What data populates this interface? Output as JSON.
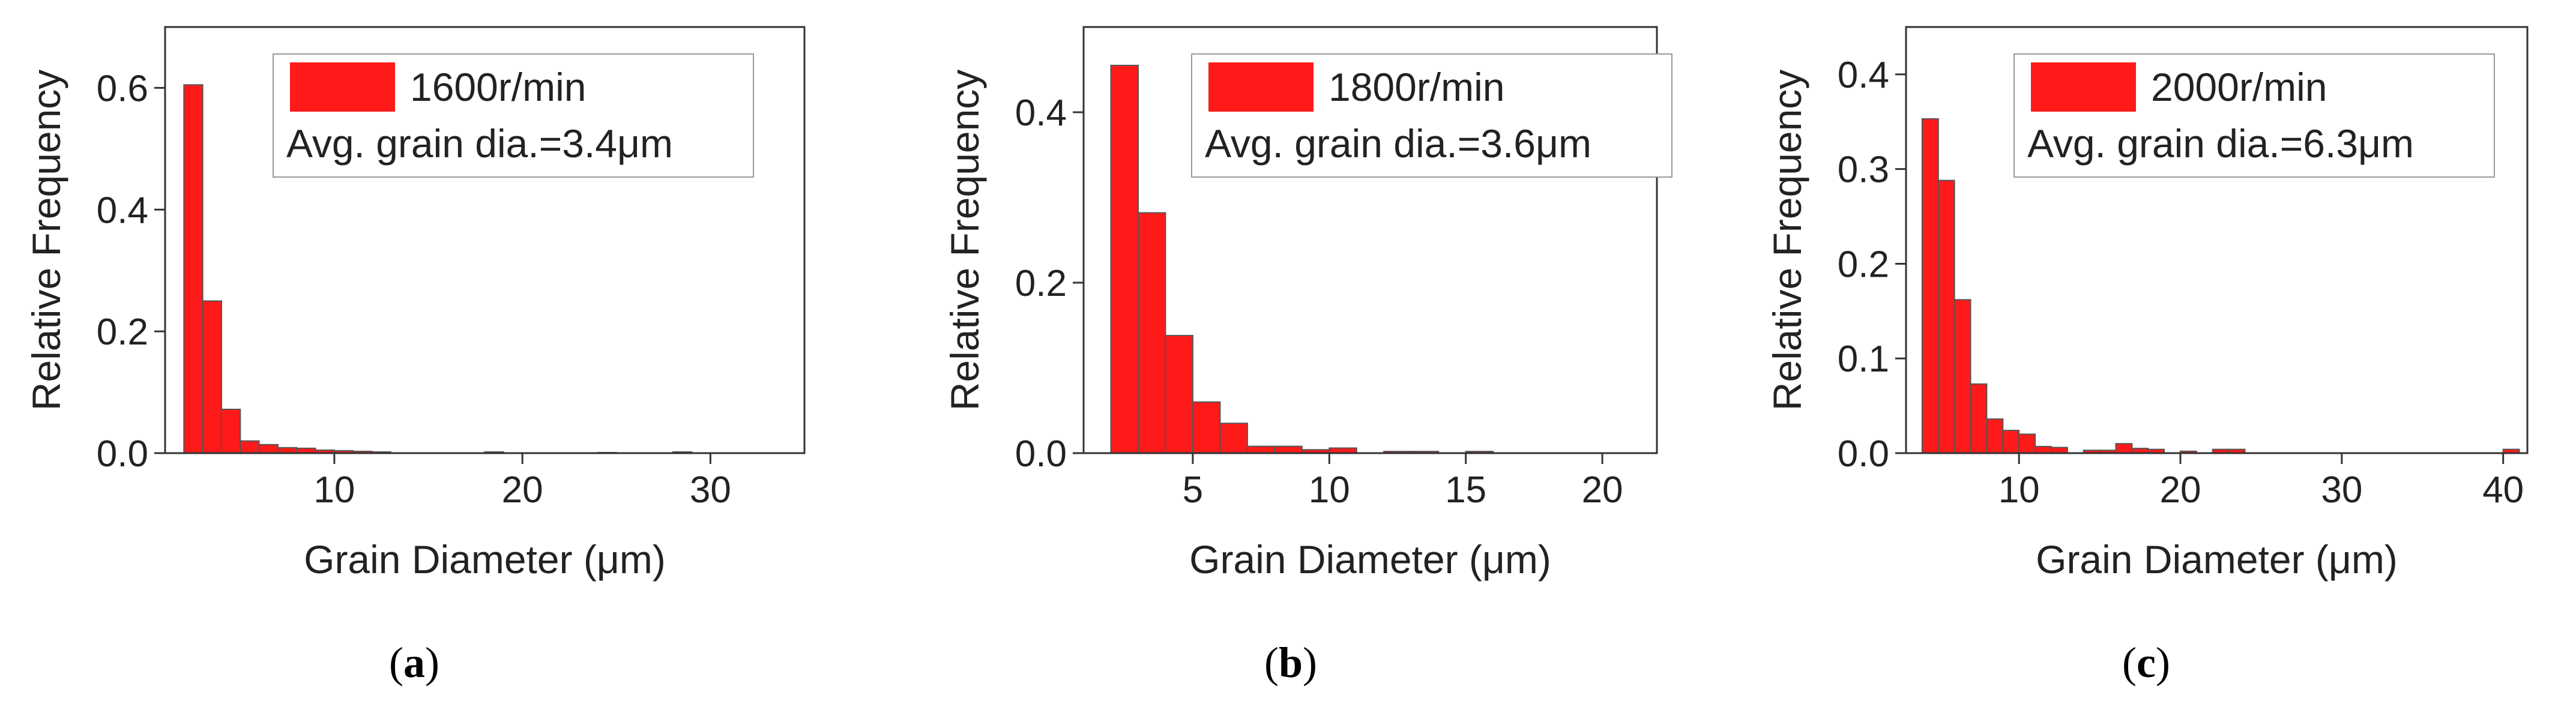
{
  "colors": {
    "bar": "#ff1a1a",
    "bar_edge": "#555555",
    "axis": "#333333",
    "legend_box_edge": "#999999"
  },
  "chart_data": [
    {
      "type": "bar",
      "panel_label": "a",
      "legend_series": "1600r/min",
      "legend_note": "Avg. grain dia.=3.4μm",
      "xlabel": "Grain Diameter (μm)",
      "ylabel": "Relative Frequency",
      "xlim": [
        1,
        35
      ],
      "ylim": [
        0,
        0.7
      ],
      "xticks": [
        10,
        20,
        30
      ],
      "yticks": [
        0.0,
        0.2,
        0.4,
        0.6
      ],
      "ytick_labels": [
        "0.0",
        "0.2",
        "0.4",
        "0.6"
      ],
      "bin_width": 1,
      "x": [
        2.5,
        3.5,
        4.5,
        5.5,
        6.5,
        7.5,
        8.5,
        9.5,
        10.5,
        11.5,
        12.5,
        18.5,
        24.5,
        28.5
      ],
      "values": [
        0.605,
        0.25,
        0.072,
        0.02,
        0.014,
        0.009,
        0.008,
        0.005,
        0.004,
        0.003,
        0.002,
        0.002,
        0.001,
        0.002
      ]
    },
    {
      "type": "bar",
      "panel_label": "b",
      "legend_series": "1800r/min",
      "legend_note": "Avg. grain dia.=3.6μm",
      "xlabel": "Grain Diameter (μm)",
      "ylabel": "Relative Frequency",
      "xlim": [
        1,
        22
      ],
      "ylim": [
        0,
        0.5
      ],
      "xticks": [
        5,
        10,
        15,
        20
      ],
      "yticks": [
        0.0,
        0.2,
        0.4
      ],
      "ytick_labels": [
        "0.0",
        "0.2",
        "0.4"
      ],
      "bin_width": 1,
      "x": [
        2.5,
        3.5,
        4.5,
        5.5,
        6.5,
        7.5,
        8.5,
        9.5,
        10.5,
        12.5,
        13.5,
        15.5
      ],
      "values": [
        0.455,
        0.282,
        0.138,
        0.06,
        0.035,
        0.008,
        0.008,
        0.004,
        0.006,
        0.002,
        0.002,
        0.002
      ]
    },
    {
      "type": "bar",
      "panel_label": "c",
      "legend_series": "2000r/min",
      "legend_note": "Avg. grain dia.=6.3μm",
      "xlabel": "Grain Diameter (μm)",
      "ylabel": "Relative Frequency",
      "xlim": [
        3,
        41.5
      ],
      "ylim": [
        0,
        0.45
      ],
      "xticks": [
        10,
        20,
        30,
        40
      ],
      "yticks": [
        0.0,
        0.1,
        0.2,
        0.3,
        0.4
      ],
      "ytick_labels": [
        "0.0",
        "0.1",
        "0.2",
        "0.3",
        "0.4"
      ],
      "bin_width": 1,
      "x": [
        4.5,
        5.5,
        6.5,
        7.5,
        8.5,
        9.5,
        10.5,
        11.5,
        12.5,
        14.5,
        15.5,
        16.5,
        17.5,
        18.5,
        20.5,
        22.5,
        23.5,
        40.5
      ],
      "values": [
        0.353,
        0.288,
        0.162,
        0.073,
        0.036,
        0.024,
        0.02,
        0.007,
        0.006,
        0.003,
        0.003,
        0.01,
        0.005,
        0.004,
        0.002,
        0.004,
        0.004,
        0.004
      ]
    }
  ]
}
